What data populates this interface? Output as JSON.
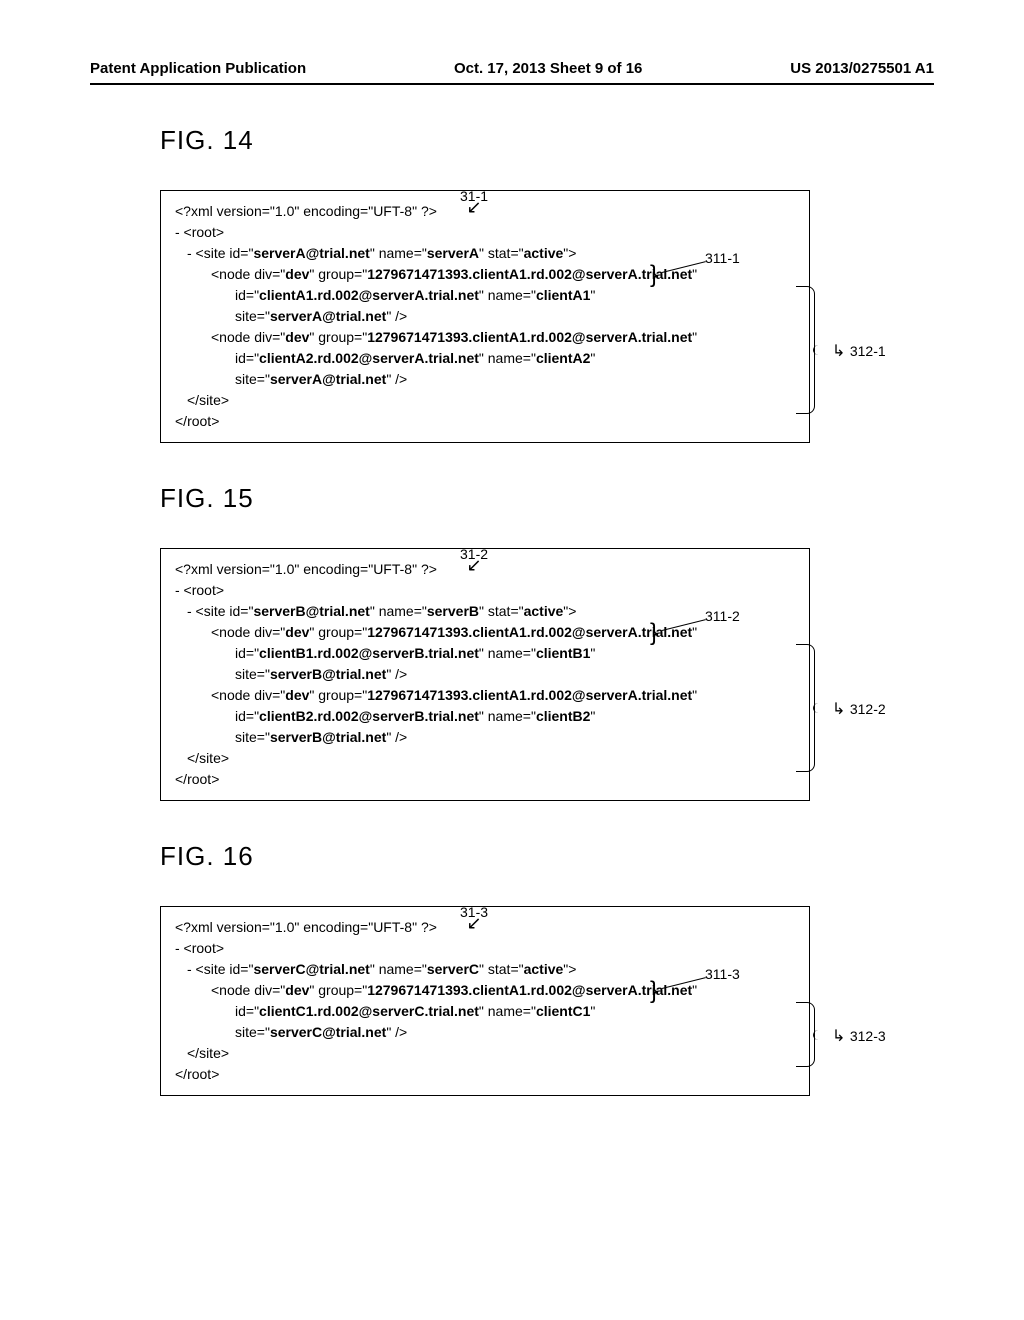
{
  "header": {
    "left": "Patent Application Publication",
    "center": "Oct. 17, 2013  Sheet 9 of 16",
    "right": "US 2013/0275501 A1"
  },
  "figures": [
    {
      "title": "FIG. 14",
      "topref": "31-1",
      "calloutA": "311-1",
      "calloutB": "312-1",
      "box_height_label": 120,
      "xml": {
        "decl_a": "<?xml version=\"1.0\"  encoding=\"UFT-8\" ?>",
        "root_open": "- <root>",
        "site_open_a": " - <site id=\"",
        "site_id": "serverA@trial.net",
        "site_open_b": "\" name=\"",
        "site_name": "serverA",
        "site_open_c": "\" stat=\"",
        "site_stat": "active",
        "site_open_d": "\">",
        "nodes": [
          {
            "div": "dev",
            "group": "1279671471393.clientA1.rd.002@serverA.trial.net",
            "id": "clientA1.rd.002@serverA.trial.net",
            "name": "clientA1",
            "site": "serverA@trial.net"
          },
          {
            "div": "dev",
            "group": "1279671471393.clientA1.rd.002@serverA.trial.net",
            "id": "clientA2.rd.002@serverA.trial.net",
            "name": "clientA2",
            "site": "serverA@trial.net"
          }
        ],
        "site_close": "</site>",
        "root_close": "</root>"
      }
    },
    {
      "title": "FIG. 15",
      "topref": "31-2",
      "calloutA": "311-2",
      "calloutB": "312-2",
      "box_height_label": 120,
      "xml": {
        "decl_a": "<?xml version=\"1.0\"  encoding=\"UFT-8\" ?>",
        "root_open": "- <root>",
        "site_open_a": " - <site id=\"",
        "site_id": "serverB@trial.net",
        "site_open_b": "\" name=\"",
        "site_name": "serverB",
        "site_open_c": "\" stat=\"",
        "site_stat": "active",
        "site_open_d": "\">",
        "nodes": [
          {
            "div": "dev",
            "group": "1279671471393.clientA1.rd.002@serverA.trial.net",
            "id": "clientB1.rd.002@serverB.trial.net",
            "name": "clientB1",
            "site": "serverB@trial.net"
          },
          {
            "div": "dev",
            "group": "1279671471393.clientA1.rd.002@serverA.trial.net",
            "id": "clientB2.rd.002@serverB.trial.net",
            "name": "clientB2",
            "site": "serverB@trial.net"
          }
        ],
        "site_close": "</site>",
        "root_close": "</root>"
      }
    },
    {
      "title": "FIG. 16",
      "topref": "31-3",
      "calloutA": "311-3",
      "calloutB": "312-3",
      "box_height_label": 60,
      "xml": {
        "decl_a": "<?xml version=\"1.0\"  encoding=\"UFT-8\" ?>",
        "root_open": "- <root>",
        "site_open_a": " - <site id=\"",
        "site_id": "serverC@trial.net",
        "site_open_b": "\" name=\"",
        "site_name": "serverC",
        "site_open_c": "\" stat=\"",
        "site_stat": "active",
        "site_open_d": "\">",
        "nodes": [
          {
            "div": "dev",
            "group": "1279671471393.clientA1.rd.002@serverA.trial.net",
            "id": "clientC1.rd.002@serverC.trial.net",
            "name": "clientC1",
            "site": "serverC@trial.net"
          }
        ],
        "site_close": "</site>",
        "root_close": "</root>"
      }
    }
  ]
}
